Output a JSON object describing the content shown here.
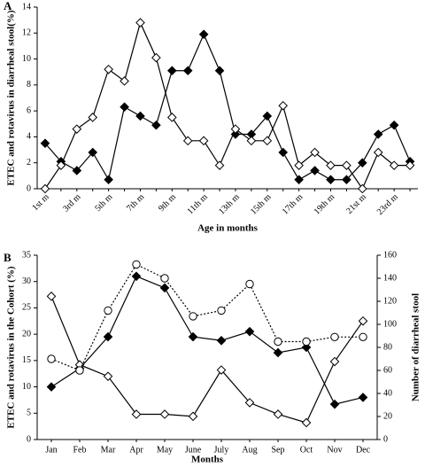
{
  "chart_data": [
    {
      "type": "line",
      "panel_label": "A",
      "y_label": "ETEC and rotavirus in diarrheal stool(%)",
      "x_label": "Age in months",
      "categories": [
        "1st m",
        null,
        "3rd m",
        null,
        "5th m",
        null,
        "7th m",
        null,
        "9th m",
        null,
        "11th m",
        null,
        "13th m",
        null,
        "15th m",
        null,
        "17th m",
        null,
        "19th m",
        null,
        "21st m",
        null,
        "23rd m",
        null
      ],
      "series": [
        {
          "color": "#000000",
          "marker": "diamond-filled",
          "line_style": "solid",
          "values": [
            3.5,
            2.1,
            1.4,
            2.8,
            0.7,
            6.3,
            5.6,
            4.9,
            9.1,
            9.1,
            11.9,
            9.1,
            4.2,
            4.2,
            5.6,
            2.8,
            0.7,
            1.4,
            0.7,
            0.7,
            2.0,
            4.2,
            4.9,
            2.1
          ]
        },
        {
          "color": "#000000",
          "marker": "diamond-open",
          "line_style": "solid",
          "values": [
            0,
            1.8,
            4.6,
            5.5,
            9.2,
            8.3,
            12.8,
            10.1,
            5.5,
            3.7,
            3.7,
            1.8,
            4.6,
            3.7,
            3.7,
            6.4,
            1.8,
            2.8,
            1.8,
            1.8,
            0,
            2.8,
            1.8,
            1.8
          ]
        }
      ],
      "ylim": [
        0,
        14
      ],
      "yticks": [
        0,
        2,
        4,
        6,
        8,
        10,
        12,
        14
      ],
      "x_label_rotation": -45
    },
    {
      "type": "line",
      "panel_label": "B",
      "y_label": "ETEC and rotavirus in the Cohort (%)",
      "y2_label": "Number of diarrheal stool",
      "x_label": "Months",
      "categories": [
        "Jan",
        "Feb",
        "Mar",
        "Apr",
        "May",
        "June",
        "July",
        "Aug",
        "Sep",
        "Oct",
        "Nov",
        "Dec"
      ],
      "series": [
        {
          "color": "#000000",
          "marker": "diamond-filled",
          "line_style": "solid",
          "values": [
            10,
            13.5,
            19.5,
            31,
            28.8,
            19.5,
            18.8,
            20.5,
            16.5,
            17.5,
            6.7,
            8
          ]
        },
        {
          "color": "#000000",
          "marker": "diamond-open",
          "line_style": "solid",
          "values": [
            27.2,
            14.2,
            12,
            4.8,
            4.8,
            4.4,
            13.2,
            7,
            4.8,
            3.2,
            14.8,
            22.5
          ]
        },
        {
          "color": "#000000",
          "marker": "circle-open",
          "line_style": "dotted",
          "axis": "y2",
          "values": [
            70,
            60,
            112,
            152,
            140,
            107,
            112,
            135,
            85,
            85,
            89,
            89
          ]
        }
      ],
      "ylim": [
        0,
        35
      ],
      "yticks": [
        0,
        5,
        10,
        15,
        20,
        25,
        30,
        35
      ],
      "y2lim": [
        0,
        160
      ],
      "y2ticks": [
        0,
        20,
        40,
        60,
        80,
        100,
        120,
        140,
        160
      ],
      "x_label_rotation": 0
    }
  ]
}
